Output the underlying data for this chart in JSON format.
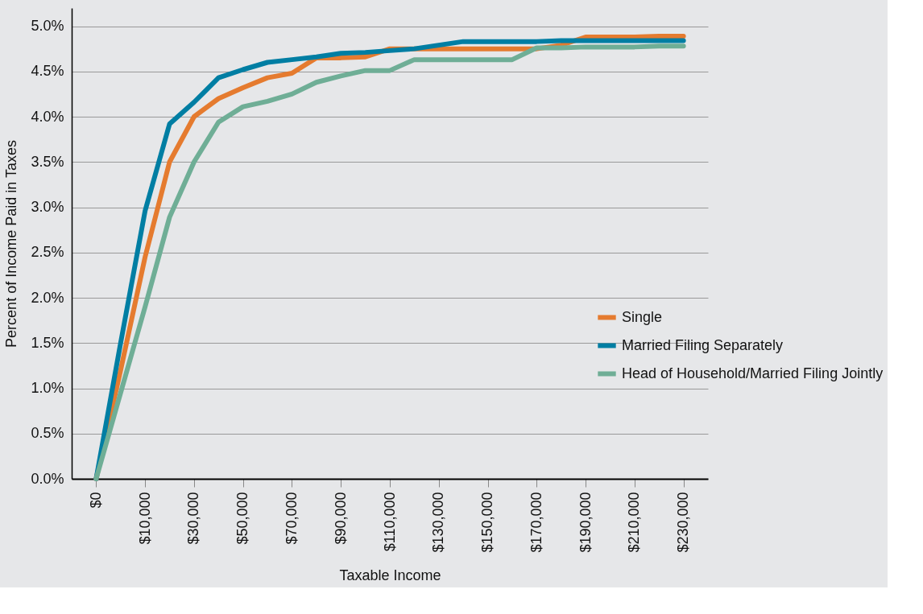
{
  "chart_data": {
    "type": "line",
    "xlabel": "Taxable Income",
    "ylabel": "Percent of Income Paid in Taxes",
    "categories": [
      "$0",
      null,
      "$10,000",
      null,
      "$30,000",
      null,
      "$50,000",
      null,
      "$70,000",
      null,
      "$90,000",
      null,
      "$110,000",
      null,
      "$130,000",
      null,
      "$150,000",
      null,
      "$170,000",
      null,
      "$190,000",
      null,
      "$210,000",
      null,
      "$230,000"
    ],
    "series": [
      {
        "name": "Single",
        "color": "#e57b2f",
        "values": [
          0,
          1.2,
          2.45,
          3.5,
          4.0,
          4.2,
          4.32,
          4.43,
          4.48,
          4.65,
          4.65,
          4.66,
          4.75,
          4.75,
          4.75,
          4.75,
          4.75,
          4.75,
          4.75,
          4.79,
          4.88,
          4.88,
          4.88,
          4.89,
          4.89
        ]
      },
      {
        "name": "Married Filing Separately",
        "color": "#007ea3",
        "values": [
          0,
          1.5,
          2.96,
          3.92,
          4.16,
          4.43,
          4.52,
          4.6,
          4.63,
          4.66,
          4.7,
          4.71,
          4.73,
          4.75,
          4.79,
          4.83,
          4.83,
          4.83,
          4.83,
          4.84,
          4.84,
          4.84,
          4.84,
          4.84,
          4.84
        ]
      },
      {
        "name": "Head of Household/Married Filing Jointly",
        "color": "#6fae96",
        "values": [
          0,
          0.95,
          1.9,
          2.89,
          3.5,
          3.94,
          4.11,
          4.17,
          4.25,
          4.38,
          4.45,
          4.51,
          4.51,
          4.63,
          4.63,
          4.63,
          4.63,
          4.63,
          4.76,
          4.76,
          4.77,
          4.77,
          4.77,
          4.78,
          4.78
        ]
      }
    ],
    "ylim": [
      0,
      5.2
    ],
    "yticks": [
      {
        "value": 0,
        "label": "0.0%"
      },
      {
        "value": 0.5,
        "label": "0.5%"
      },
      {
        "value": 1,
        "label": "1.0%"
      },
      {
        "value": 1.5,
        "label": "1.5%"
      },
      {
        "value": 2,
        "label": "2.0%"
      },
      {
        "value": 2.5,
        "label": "2.5%"
      },
      {
        "value": 3,
        "label": "3.0%"
      },
      {
        "value": 3.5,
        "label": "3.5%"
      },
      {
        "value": 4,
        "label": "4.0%"
      },
      {
        "value": 4.5,
        "label": "4.5%"
      },
      {
        "value": 5,
        "label": "5.0%"
      }
    ],
    "grid": "y",
    "legend": "right",
    "marker": "none",
    "line_style": "solid"
  }
}
